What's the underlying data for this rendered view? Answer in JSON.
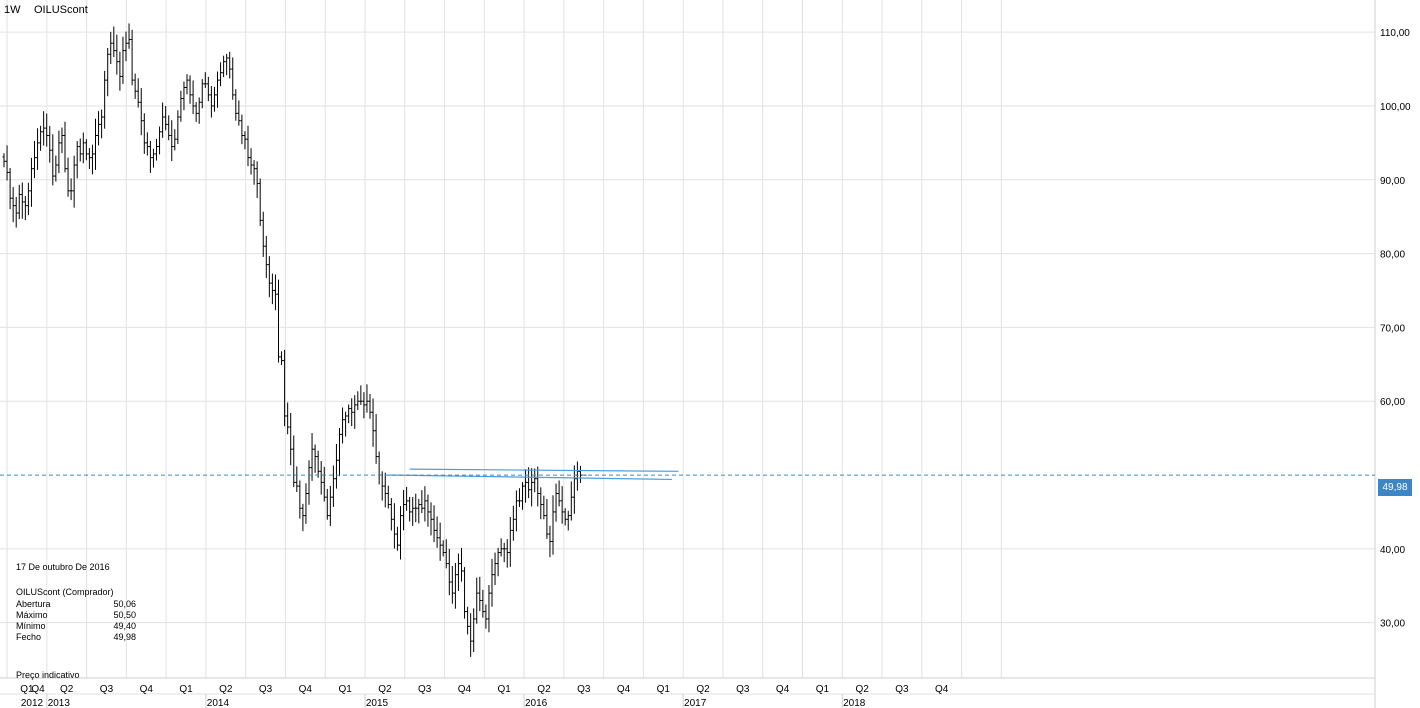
{
  "header": {
    "timeframe": "1W",
    "symbol": "OILUScont"
  },
  "info_panel": {
    "date": "17 De outubro De 2016",
    "instrument": "OILUScont (Comprador)",
    "rows": [
      {
        "label": "Abertura",
        "value": "50,06"
      },
      {
        "label": "Máximo",
        "value": "50,50"
      },
      {
        "label": "Mínimo",
        "value": "49,40"
      },
      {
        "label": "Fecho",
        "value": "49,98"
      }
    ],
    "footnote": "Preço indicativo"
  },
  "current_price": {
    "value": 49.98,
    "label": "49,98"
  },
  "colors": {
    "bars": "#000000",
    "grid": "#e2e2e2",
    "trendline": "#4a9de0",
    "price_line": "#3c86c8",
    "price_tag_bg": "#3c86c8",
    "price_tag_text": "#ffffff"
  },
  "chart_data": {
    "type": "ohlc",
    "interval": "weekly",
    "ylim": [
      22.5,
      113
    ],
    "y_ticks": [
      {
        "value": 30,
        "label": "30,00"
      },
      {
        "value": 40,
        "label": "40,00"
      },
      {
        "value": 60,
        "label": "60,00"
      },
      {
        "value": 70,
        "label": "70,00"
      },
      {
        "value": 80,
        "label": "80,00"
      },
      {
        "value": 90,
        "label": "90,00"
      },
      {
        "value": 100,
        "label": "100,00"
      },
      {
        "value": 110,
        "label": "110,00"
      }
    ],
    "quarter_labels": [
      "Q4",
      "Q1",
      "Q2",
      "Q3",
      "Q4",
      "Q1",
      "Q2",
      "Q3",
      "Q4",
      "Q1",
      "Q2",
      "Q3",
      "Q4",
      "Q1",
      "Q2",
      "Q3",
      "Q4",
      "Q1",
      "Q2",
      "Q3",
      "Q4",
      "Q1",
      "Q2",
      "Q3",
      "Q4"
    ],
    "year_labels": [
      "2012",
      "2013",
      "2014",
      "2015",
      "2016",
      "2017",
      "2018"
    ],
    "closes": [
      92.5,
      91.0,
      87.5,
      86.5,
      85.5,
      88.0,
      87.0,
      86.5,
      88.5,
      91.5,
      93.0,
      95.0,
      96.5,
      97.0,
      96.0,
      94.0,
      90.5,
      92.0,
      95.0,
      96.0,
      91.5,
      88.5,
      88.5,
      92.0,
      94.5,
      93.5,
      95.0,
      93.5,
      93.0,
      93.5,
      96.0,
      97.5,
      98.5,
      103.5,
      107.0,
      108.5,
      107.5,
      106.0,
      104.0,
      107.5,
      108.5,
      109.0,
      103.5,
      102.0,
      100.5,
      98.0,
      95.0,
      94.5,
      93.0,
      93.5,
      94.5,
      96.5,
      98.5,
      97.5,
      96.0,
      94.5,
      95.5,
      98.5,
      101.0,
      102.5,
      103.5,
      101.5,
      100.0,
      99.0,
      100.5,
      103.0,
      103.0,
      101.5,
      100.0,
      101.5,
      103.5,
      104.5,
      106.0,
      106.5,
      105.0,
      101.5,
      99.0,
      98.0,
      96.0,
      95.5,
      93.0,
      92.0,
      91.5,
      89.5,
      84.5,
      81.0,
      78.5,
      76.0,
      75.0,
      74.5,
      66.0,
      65.5,
      58.0,
      56.5,
      53.5,
      49.0,
      48.5,
      45.5,
      44.5,
      47.5,
      51.0,
      53.5,
      52.5,
      50.5,
      49.0,
      47.0,
      44.5,
      47.0,
      49.5,
      52.0,
      55.5,
      57.5,
      58.0,
      59.0,
      58.5,
      59.5,
      60.0,
      60.0,
      59.5,
      60.0,
      58.5,
      56.0,
      52.5,
      50.0,
      48.5,
      47.5,
      46.0,
      44.0,
      42.0,
      40.5,
      44.5,
      46.0,
      46.5,
      45.0,
      45.5,
      45.5,
      46.0,
      45.5,
      46.5,
      45.0,
      44.0,
      42.5,
      41.5,
      40.5,
      39.5,
      38.0,
      35.5,
      34.0,
      36.5,
      38.0,
      37.0,
      31.5,
      29.5,
      27.5,
      30.5,
      34.0,
      33.0,
      31.5,
      30.5,
      34.0,
      36.5,
      38.0,
      39.5,
      40.0,
      40.0,
      39.5,
      42.5,
      44.0,
      46.5,
      46.5,
      48.5,
      49.0,
      48.0,
      49.0,
      49.5,
      47.5,
      46.0,
      44.5,
      42.0,
      41.0,
      45.0,
      47.5,
      46.5,
      45.0,
      44.0,
      44.5,
      47.0,
      49.5,
      50.5,
      49.98
    ],
    "trendlines": [
      {
        "p1": [
          "2015-04-13",
          50.8
        ],
        "p2": [
          "2016-12-20",
          50.5
        ]
      },
      {
        "p1": [
          "2015-02-23",
          50.0
        ],
        "p2": [
          "2016-12-05",
          49.4
        ]
      }
    ],
    "last_close": 49.98
  }
}
